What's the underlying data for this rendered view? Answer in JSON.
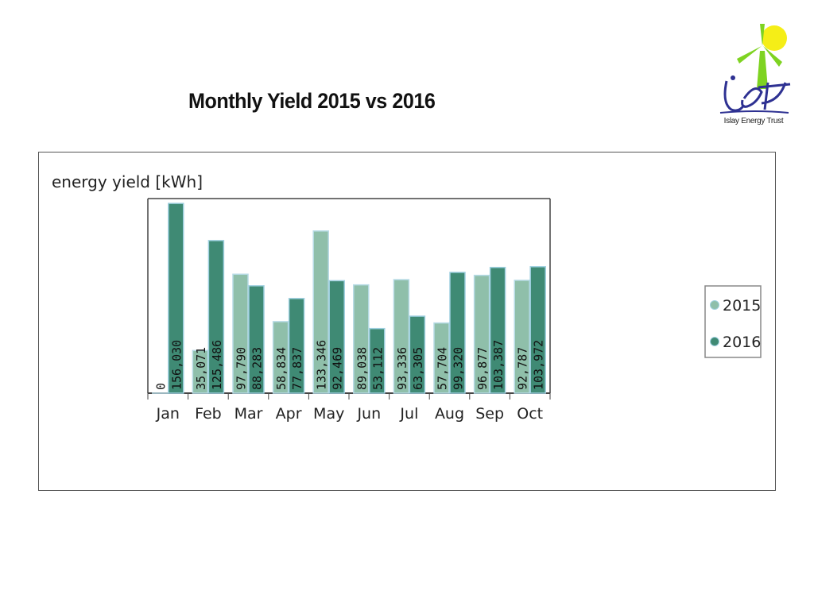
{
  "slide": {
    "title": "Monthly Yield 2015 vs 2016",
    "logo_caption": "Islay Energy Trust",
    "logo_icon": "wind-turbine-logo-icon"
  },
  "chart_data": {
    "type": "bar",
    "title": "",
    "ylabel": "energy yield [kWh]",
    "xlabel": "",
    "categories": [
      "Jan",
      "Feb",
      "Mar",
      "Apr",
      "May",
      "Jun",
      "Jul",
      "Aug",
      "Sep",
      "Oct"
    ],
    "series": [
      {
        "name": "2015",
        "color": "#8fbfaa",
        "values": [
          0,
          35071,
          97790,
          58834,
          133346,
          89038,
          93336,
          57704,
          96877,
          92787
        ],
        "labels": [
          "0",
          "35,071",
          "97,790",
          "58,834",
          "133,346",
          "89,038",
          "93,336",
          "57,704",
          "96,877",
          "92,787"
        ]
      },
      {
        "name": "2016",
        "color": "#3f8a74",
        "values": [
          156030,
          125486,
          88283,
          77837,
          92469,
          53112,
          63305,
          99320,
          103387,
          103972
        ],
        "labels": [
          "156,030",
          "125,486",
          "88,283",
          "77,837",
          "92,469",
          "53,112",
          "63,305",
          "99,320",
          "103,387",
          "103,972"
        ]
      }
    ],
    "ylim": [
      0,
      160000
    ],
    "grid": false,
    "legend_position": "right"
  }
}
